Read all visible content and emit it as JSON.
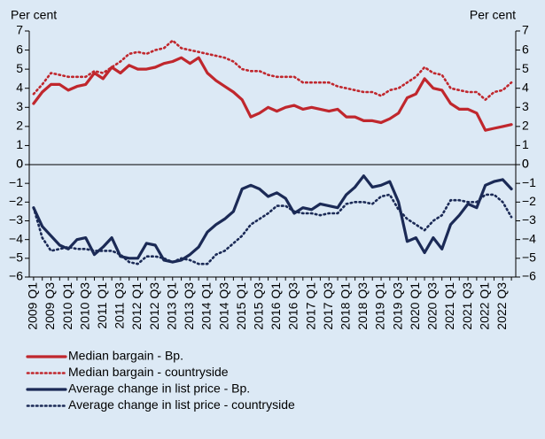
{
  "chart_data": [
    {
      "type": "line",
      "ylabel": "Per cent",
      "y2label": "Per cent",
      "ylim": [
        0,
        7
      ],
      "yticks": [
        0,
        1,
        2,
        3,
        4,
        5,
        6,
        7
      ],
      "series": [
        {
          "name": "Median bargain - Bp.",
          "color": "#c0272d",
          "style": "solid",
          "values": [
            3.2,
            3.8,
            4.2,
            4.2,
            3.9,
            4.1,
            4.2,
            4.8,
            4.5,
            5.1,
            4.8,
            5.2,
            5.0,
            5.0,
            5.1,
            5.3,
            5.4,
            5.6,
            5.3,
            5.6,
            4.8,
            4.4,
            4.1,
            3.8,
            3.4,
            2.5,
            2.7,
            3.0,
            2.8,
            3.0,
            3.1,
            2.9,
            3.0,
            2.9,
            2.8,
            2.9,
            2.5,
            2.5,
            2.3,
            2.3,
            2.2,
            2.4,
            2.7,
            3.5,
            3.7,
            4.5,
            4.0,
            3.9,
            3.2,
            2.9,
            2.9,
            2.7,
            1.8,
            1.9,
            2.0,
            2.1
          ]
        },
        {
          "name": "Median bargain - countryside",
          "color": "#c0272d",
          "style": "dotted",
          "values": [
            3.7,
            4.2,
            4.8,
            4.7,
            4.6,
            4.6,
            4.6,
            4.9,
            4.8,
            5.1,
            5.4,
            5.8,
            5.9,
            5.8,
            6.0,
            6.1,
            6.5,
            6.1,
            6.0,
            5.9,
            5.8,
            5.7,
            5.6,
            5.4,
            5.0,
            4.9,
            4.9,
            4.7,
            4.6,
            4.6,
            4.6,
            4.3,
            4.3,
            4.3,
            4.3,
            4.1,
            4.0,
            3.9,
            3.8,
            3.8,
            3.6,
            3.9,
            4.0,
            4.3,
            4.6,
            5.1,
            4.8,
            4.7,
            4.0,
            3.9,
            3.8,
            3.8,
            3.4,
            3.8,
            3.9,
            4.3
          ]
        }
      ]
    },
    {
      "type": "line",
      "categories": [
        "2009 Q1",
        null,
        "2009 Q3",
        null,
        "2010 Q1",
        null,
        "2010 Q3",
        null,
        "2011 Q1",
        null,
        "2011 Q3",
        null,
        "2012 Q1",
        null,
        "2012 Q3",
        null,
        "2013 Q1",
        null,
        "2013 Q3",
        null,
        "2014 Q1",
        null,
        "2014 Q3",
        null,
        "2015 Q1",
        null,
        "2015 Q3",
        null,
        "2016 Q1",
        null,
        "2016 Q3",
        null,
        "2017 Q1",
        null,
        "2017 Q3",
        null,
        "2018 Q1",
        null,
        "2018 Q3",
        null,
        "2019 Q1",
        null,
        "2019 Q3",
        null,
        "2020 Q1",
        null,
        "2020 Q3",
        null,
        "2021 Q1",
        null,
        "2021 Q3",
        null,
        "2022 Q1",
        null,
        "2022 Q3",
        null
      ],
      "ylim": [
        -6,
        0
      ],
      "yticks": [
        {
          "value": -6,
          "label": "−6"
        },
        {
          "value": -5,
          "label": "−5"
        },
        {
          "value": -4,
          "label": "−4"
        },
        {
          "value": -3,
          "label": "−3"
        },
        {
          "value": -2,
          "label": "−2"
        },
        {
          "value": -1,
          "label": "−1"
        },
        0
      ],
      "series": [
        {
          "name": "Average change in list price - Bp.",
          "color": "#1b2a56",
          "style": "solid",
          "values": [
            -2.3,
            -3.3,
            -3.8,
            -4.3,
            -4.5,
            -4.0,
            -3.9,
            -4.8,
            -4.4,
            -3.9,
            -4.9,
            -5.0,
            -5.0,
            -4.2,
            -4.3,
            -5.1,
            -5.2,
            -5.1,
            -4.8,
            -4.4,
            -3.6,
            -3.2,
            -2.9,
            -2.5,
            -1.3,
            -1.1,
            -1.3,
            -1.7,
            -1.5,
            -1.8,
            -2.6,
            -2.3,
            -2.4,
            -2.1,
            -2.2,
            -2.3,
            -1.6,
            -1.2,
            -0.6,
            -1.2,
            -1.1,
            -0.9,
            -2.0,
            -4.1,
            -3.9,
            -4.7,
            -3.9,
            -4.5,
            -3.2,
            -2.7,
            -2.1,
            -2.3,
            -1.1,
            -0.9,
            -0.8,
            -1.3
          ]
        },
        {
          "name": "Average change in list price - countryside",
          "color": "#1b2a56",
          "style": "dotted",
          "values": [
            -2.3,
            -3.9,
            -4.6,
            -4.5,
            -4.4,
            -4.5,
            -4.5,
            -4.6,
            -4.6,
            -4.6,
            -4.8,
            -5.2,
            -5.3,
            -4.9,
            -4.9,
            -5.0,
            -5.2,
            -5.0,
            -5.1,
            -5.3,
            -5.3,
            -4.8,
            -4.6,
            -4.2,
            -3.8,
            -3.2,
            -2.9,
            -2.6,
            -2.2,
            -2.2,
            -2.5,
            -2.6,
            -2.6,
            -2.7,
            -2.6,
            -2.6,
            -2.1,
            -2.0,
            -2.0,
            -2.1,
            -1.7,
            -1.6,
            -2.4,
            -2.9,
            -3.2,
            -3.5,
            -3.0,
            -2.7,
            -1.9,
            -1.9,
            -2.0,
            -2.0,
            -1.6,
            -1.6,
            -2.0,
            -2.8
          ]
        }
      ]
    }
  ]
}
